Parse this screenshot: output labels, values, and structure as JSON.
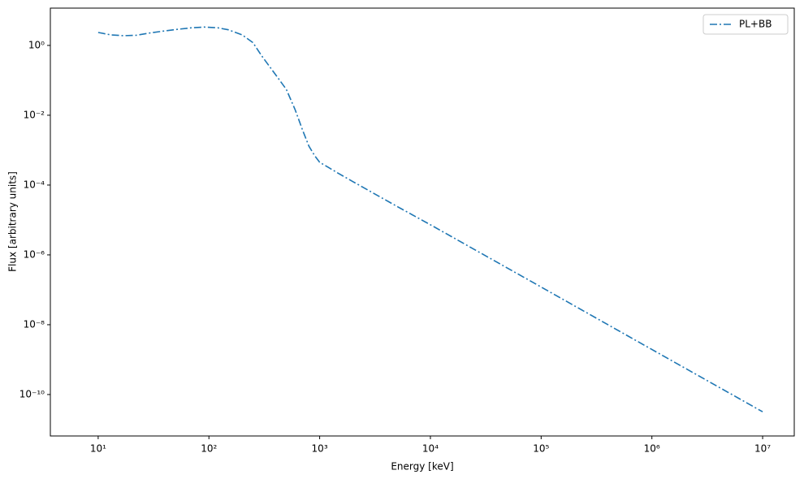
{
  "chart_data": {
    "type": "line",
    "xlabel": "Energy [keV]",
    "ylabel": "Flux [arbitrary units]",
    "xscale": "log",
    "yscale": "log",
    "grid": false,
    "legend": "upper right",
    "xlim": [
      3.7,
      19300000
    ],
    "ylim": [
      6.5e-12,
      11.7
    ],
    "xticks": [
      {
        "value": 10,
        "label": "10¹"
      },
      {
        "value": 100,
        "label": "10²"
      },
      {
        "value": 1000,
        "label": "10³"
      },
      {
        "value": 10000,
        "label": "10⁴"
      },
      {
        "value": 100000,
        "label": "10⁵"
      },
      {
        "value": 1000000,
        "label": "10⁶"
      },
      {
        "value": 10000000,
        "label": "10⁷"
      }
    ],
    "yticks": [
      {
        "value": 1,
        "label": "10⁰"
      },
      {
        "value": 0.01,
        "label": "10⁻²"
      },
      {
        "value": 0.0001,
        "label": "10⁻⁴"
      },
      {
        "value": 1e-06,
        "label": "10⁻⁶"
      },
      {
        "value": 1e-08,
        "label": "10⁻⁸"
      },
      {
        "value": 1e-10,
        "label": "10⁻¹⁰"
      }
    ],
    "x": [
      10,
      13,
      17,
      22,
      30,
      40,
      50,
      70,
      90,
      120,
      150,
      200,
      250,
      300,
      400,
      500,
      600,
      700,
      800,
      900,
      1000,
      1200,
      1500,
      2000,
      5000,
      10000,
      100000,
      1000000,
      10000000
    ],
    "series": [
      {
        "name": "PL+BB",
        "color": "#1f77b4",
        "linestyle": "dashdot",
        "values": [
          2.35,
          2.0,
          1.9,
          1.95,
          2.3,
          2.6,
          2.85,
          3.2,
          3.35,
          3.2,
          2.8,
          2.0,
          1.2,
          0.5,
          0.145,
          0.055,
          0.0145,
          0.0038,
          0.0013,
          0.0007,
          0.00045,
          0.00032,
          0.00021,
          0.000125,
          2.44e-05,
          7.3e-06,
          1.2e-07,
          1.95e-09,
          3.2e-11
        ]
      }
    ]
  }
}
